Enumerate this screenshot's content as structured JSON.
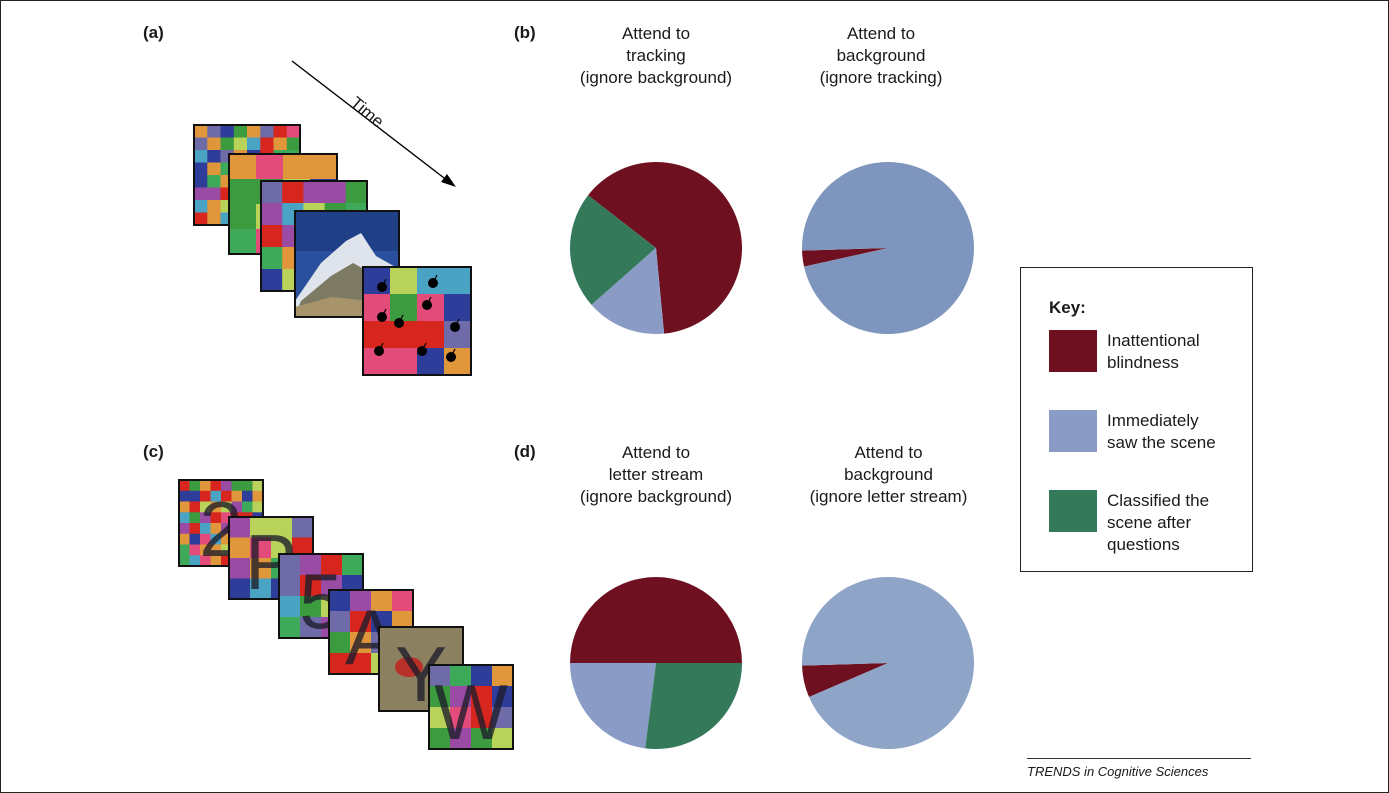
{
  "panels": {
    "a": "(a)",
    "b": "(b)",
    "c": "(c)",
    "d": "(d)"
  },
  "time_label": "Time",
  "titles": {
    "b1": [
      "Attend to",
      "tracking",
      "(ignore background)"
    ],
    "b2": [
      "Attend to",
      "background",
      "(ignore tracking)"
    ],
    "d1": [
      "Attend to",
      "letter stream",
      "(ignore background)"
    ],
    "d2": [
      "Attend to",
      "background",
      "(ignore letter stream)"
    ]
  },
  "letters": [
    "2",
    "P",
    "5",
    "A",
    "Y",
    "W"
  ],
  "key": {
    "title": "Key:",
    "items": [
      {
        "lines": [
          "Inattentional",
          "blindness"
        ],
        "color": "#6e1020"
      },
      {
        "lines": [
          "Immediately",
          "saw the scene"
        ],
        "color": "#8a9cc6"
      },
      {
        "lines": [
          "Classified the",
          "scene after",
          "questions"
        ],
        "color": "#347a5a"
      }
    ]
  },
  "credit": "TRENDS in Cognitive Sciences",
  "chart_data": [
    {
      "type": "pie",
      "panel": "(b)",
      "title": "Attend to tracking (ignore background)",
      "slices": [
        {
          "name": "Inattentional blindness",
          "value": 63,
          "color": "#6e1020"
        },
        {
          "name": "Classified the scene after questions",
          "value": 22,
          "color": "#347a5a"
        },
        {
          "name": "Immediately saw the scene",
          "value": 15,
          "color": "#8a9cc6"
        }
      ]
    },
    {
      "type": "pie",
      "panel": "(b)",
      "title": "Attend to background (ignore tracking)",
      "slices": [
        {
          "name": "Inattentional blindness",
          "value": 3,
          "color": "#6e1020"
        },
        {
          "name": "Immediately saw the scene",
          "value": 97,
          "color": "#7e96bd"
        }
      ]
    },
    {
      "type": "pie",
      "panel": "(d)",
      "title": "Attend to letter stream (ignore background)",
      "slices": [
        {
          "name": "Inattentional blindness",
          "value": 50,
          "color": "#6e1020"
        },
        {
          "name": "Classified the scene after questions",
          "value": 27,
          "color": "#347a5a"
        },
        {
          "name": "Immediately saw the scene",
          "value": 23,
          "color": "#8a9cc6"
        }
      ]
    },
    {
      "type": "pie",
      "panel": "(d)",
      "title": "Attend to background (ignore letter stream)",
      "slices": [
        {
          "name": "Inattentional blindness",
          "value": 6,
          "color": "#6e1020"
        },
        {
          "name": "Immediately saw the scene",
          "value": 94,
          "color": "#8fa5c8"
        }
      ]
    }
  ]
}
